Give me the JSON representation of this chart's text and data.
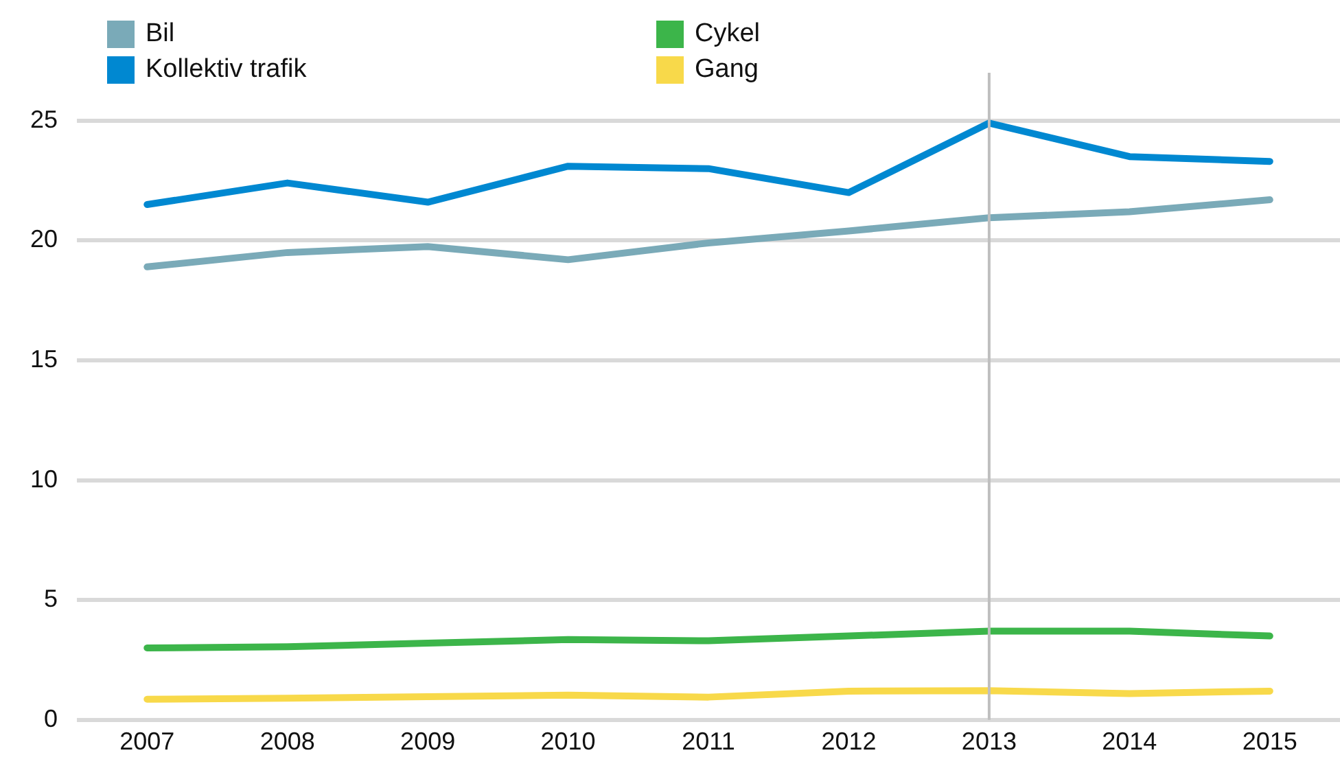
{
  "chart_data": {
    "type": "line",
    "categories": [
      "2007",
      "2008",
      "2009",
      "2010",
      "2011",
      "2012",
      "2013",
      "2014",
      "2015"
    ],
    "series": [
      {
        "name": "Bil",
        "color": "#7aaab8",
        "values": [
          18.9,
          19.5,
          19.75,
          19.2,
          19.9,
          20.4,
          20.95,
          21.2,
          21.7
        ]
      },
      {
        "name": "Kollektiv trafik",
        "color": "#0088d1",
        "values": [
          21.5,
          22.4,
          21.6,
          23.1,
          23.0,
          22.0,
          24.9,
          23.5,
          23.3
        ]
      },
      {
        "name": "Cykel",
        "color": "#3cb54a",
        "values": [
          3.0,
          3.05,
          3.2,
          3.35,
          3.3,
          3.5,
          3.7,
          3.7,
          3.5
        ]
      },
      {
        "name": "Gang",
        "color": "#f8d94a",
        "values": [
          0.86,
          0.9,
          0.97,
          1.03,
          0.95,
          1.2,
          1.22,
          1.1,
          1.2
        ]
      }
    ],
    "ylim": [
      0,
      27
    ],
    "yticks": [
      0,
      5,
      10,
      15,
      20,
      25
    ],
    "grid": "y",
    "legend": "top left",
    "marker": "none",
    "line_style": "solid",
    "ref_lines": [
      {
        "axis": "x",
        "value": "2013",
        "color": "#bfbfbf"
      }
    ]
  }
}
